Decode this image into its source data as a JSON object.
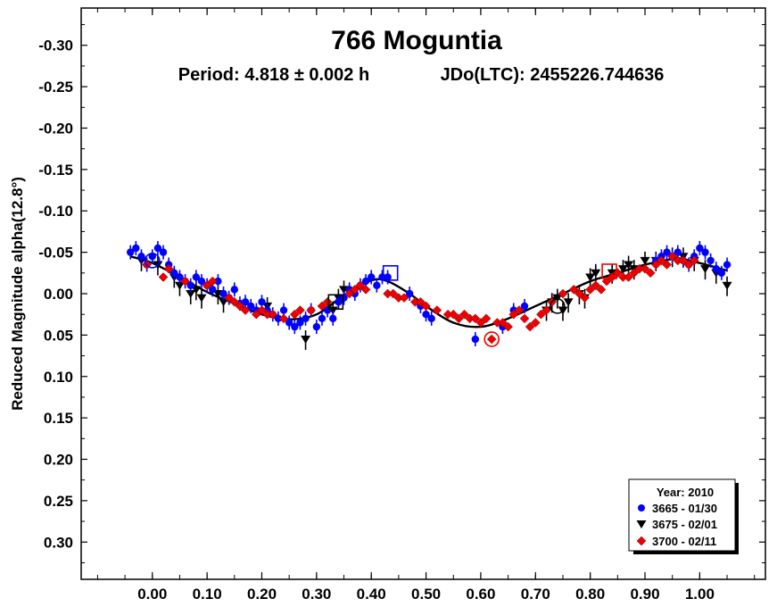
{
  "chart_data": {
    "type": "scatter",
    "title": "766 Moguntia",
    "subtitle_period": "Period: 4.818 ± 0.002 h",
    "subtitle_epoch": "JDo(LTC): 2455226.744636",
    "xlabel": "",
    "ylabel": "Reduced Magnitude alpha(12.8°)",
    "xlim": [
      -0.13,
      1.12
    ],
    "ylim": [
      -0.345,
      0.345
    ],
    "y_inverted": true,
    "x_ticks": [
      "0.00",
      "0.10",
      "0.20",
      "0.30",
      "0.40",
      "0.50",
      "0.60",
      "0.70",
      "0.80",
      "0.90",
      "1.00"
    ],
    "x_tick_values": [
      0.0,
      0.1,
      0.2,
      0.3,
      0.4,
      0.5,
      0.6,
      0.7,
      0.8,
      0.9,
      1.0
    ],
    "y_ticks": [
      "-0.30",
      "-0.25",
      "-0.20",
      "-0.15",
      "-0.10",
      "-0.05",
      "0.00",
      "0.05",
      "0.10",
      "0.15",
      "0.20",
      "0.25",
      "0.30"
    ],
    "y_tick_values": [
      -0.3,
      -0.25,
      -0.2,
      -0.15,
      -0.1,
      -0.05,
      0.0,
      0.05,
      0.1,
      0.15,
      0.2,
      0.25,
      0.3
    ],
    "grid": false,
    "legend": {
      "placement": "bottom-right",
      "title": "Year: 2010",
      "entries": [
        "3665 - 01/30",
        "3675 - 02/01",
        "3700 - 02/11"
      ]
    },
    "fit_curve": {
      "name": "",
      "color": "#000000",
      "x": [
        -0.04,
        0.0,
        0.05,
        0.1,
        0.15,
        0.2,
        0.25,
        0.3,
        0.35,
        0.4,
        0.43,
        0.47,
        0.5,
        0.55,
        0.6,
        0.65,
        0.7,
        0.75,
        0.8,
        0.85,
        0.9,
        0.95,
        0.96,
        1.0,
        1.05
      ],
      "y": [
        -0.045,
        -0.037,
        -0.02,
        -0.002,
        0.012,
        0.025,
        0.031,
        0.025,
        0.002,
        -0.016,
        -0.015,
        0.0,
        0.015,
        0.035,
        0.04,
        0.03,
        0.015,
        0.0,
        -0.015,
        -0.025,
        -0.035,
        -0.042,
        -0.043,
        -0.037,
        -0.028
      ]
    },
    "series": [
      {
        "name": "3665 - 01/30",
        "marker": "circle",
        "color": "#0000ff",
        "x": [
          -0.04,
          -0.03,
          -0.02,
          -0.01,
          0.0,
          0.01,
          0.02,
          0.03,
          0.04,
          0.05,
          0.06,
          0.07,
          0.08,
          0.09,
          0.1,
          0.11,
          0.12,
          0.13,
          0.14,
          0.15,
          0.16,
          0.17,
          0.18,
          0.19,
          0.2,
          0.21,
          0.22,
          0.23,
          0.24,
          0.25,
          0.26,
          0.27,
          0.28,
          0.29,
          0.3,
          0.31,
          0.32,
          0.33,
          0.34,
          0.35,
          0.36,
          0.37,
          0.38,
          0.39,
          0.4,
          0.41,
          0.42,
          0.43,
          0.47,
          0.49,
          0.5,
          0.51,
          0.59,
          0.64,
          0.66,
          0.68,
          0.92,
          0.93,
          0.94,
          0.95,
          0.96,
          0.97,
          0.98,
          0.99,
          1.0,
          1.01,
          1.02,
          1.03,
          1.04,
          1.05
        ],
        "y": [
          -0.05,
          -0.055,
          -0.045,
          -0.035,
          -0.045,
          -0.055,
          -0.05,
          -0.035,
          -0.025,
          -0.02,
          -0.015,
          -0.01,
          -0.02,
          -0.015,
          -0.01,
          -0.005,
          -0.015,
          0.0,
          0.005,
          -0.005,
          0.012,
          0.01,
          0.015,
          0.02,
          0.01,
          0.02,
          0.025,
          0.03,
          0.02,
          0.035,
          0.04,
          0.035,
          0.03,
          0.02,
          0.04,
          0.03,
          0.02,
          0.03,
          0.01,
          0.005,
          -0.005,
          0.0,
          -0.01,
          -0.015,
          -0.02,
          -0.01,
          -0.02,
          -0.02,
          0.0,
          0.015,
          0.025,
          0.03,
          0.055,
          0.04,
          0.02,
          0.015,
          -0.04,
          -0.045,
          -0.05,
          -0.045,
          -0.05,
          -0.04,
          -0.035,
          -0.045,
          -0.055,
          -0.05,
          -0.04,
          -0.03,
          -0.025,
          -0.035
        ]
      },
      {
        "name": "3675 - 02/01",
        "marker": "triangle-down",
        "color": "#000000",
        "x": [
          -0.02,
          0.01,
          0.04,
          0.05,
          0.07,
          0.08,
          0.09,
          0.12,
          0.13,
          0.21,
          0.28,
          0.33,
          0.34,
          0.35,
          0.72,
          0.73,
          0.74,
          0.75,
          0.76,
          0.78,
          0.79,
          0.8,
          0.81,
          0.84,
          0.86,
          0.87,
          0.88,
          0.9,
          0.92,
          0.95,
          0.97,
          0.99,
          1.01,
          1.03,
          1.05
        ],
        "y": [
          -0.04,
          -0.035,
          -0.02,
          -0.01,
          0.0,
          -0.005,
          0.005,
          0.0,
          0.01,
          0.015,
          0.055,
          0.02,
          0.005,
          -0.005,
          0.02,
          0.01,
          0.005,
          0.02,
          0.01,
          0.0,
          0.005,
          -0.02,
          -0.025,
          -0.025,
          -0.03,
          -0.035,
          -0.03,
          -0.04,
          -0.04,
          -0.045,
          -0.045,
          -0.04,
          -0.03,
          -0.025,
          -0.01
        ]
      },
      {
        "name": "3700 - 02/11",
        "marker": "diamond",
        "color": "#ee0000",
        "x": [
          -0.01,
          0.02,
          0.03,
          0.06,
          0.1,
          0.11,
          0.14,
          0.15,
          0.16,
          0.17,
          0.19,
          0.2,
          0.21,
          0.22,
          0.24,
          0.26,
          0.27,
          0.29,
          0.31,
          0.32,
          0.36,
          0.37,
          0.38,
          0.39,
          0.43,
          0.44,
          0.45,
          0.46,
          0.48,
          0.49,
          0.5,
          0.52,
          0.54,
          0.55,
          0.56,
          0.57,
          0.58,
          0.59,
          0.6,
          0.61,
          0.62,
          0.63,
          0.64,
          0.65,
          0.66,
          0.67,
          0.68,
          0.69,
          0.7,
          0.71,
          0.72,
          0.73,
          0.75,
          0.77,
          0.78,
          0.79,
          0.8,
          0.81,
          0.82,
          0.83,
          0.84,
          0.85,
          0.86,
          0.87,
          0.88,
          0.89,
          0.9,
          0.91,
          0.92,
          0.93,
          0.94,
          0.95,
          0.96,
          0.97,
          0.98,
          0.99
        ],
        "y": [
          -0.035,
          -0.02,
          -0.03,
          -0.015,
          -0.01,
          -0.015,
          0.005,
          0.01,
          0.015,
          0.02,
          0.025,
          0.02,
          0.025,
          0.025,
          0.03,
          0.025,
          0.02,
          0.02,
          0.015,
          0.01,
          0.0,
          -0.005,
          -0.01,
          -0.005,
          0.0,
          0.0,
          0.005,
          0.005,
          0.01,
          0.01,
          0.015,
          0.02,
          0.025,
          0.025,
          0.03,
          0.025,
          0.03,
          0.03,
          0.035,
          0.03,
          0.055,
          0.035,
          0.035,
          0.04,
          0.025,
          0.02,
          0.03,
          0.04,
          0.035,
          0.025,
          0.02,
          0.01,
          0.0,
          -0.005,
          0.0,
          0.005,
          -0.005,
          -0.01,
          -0.005,
          -0.015,
          -0.02,
          -0.025,
          -0.02,
          -0.02,
          -0.025,
          -0.03,
          -0.03,
          -0.025,
          -0.035,
          -0.04,
          -0.035,
          -0.045,
          -0.04,
          -0.04,
          -0.035,
          -0.04
        ]
      }
    ],
    "highlighted_points": [
      {
        "series": "3665 - 01/30",
        "marker": "circle",
        "x": 0.0,
        "y": -0.04
      },
      {
        "series": "3665 - 01/30",
        "marker": "square",
        "x": 0.435,
        "y": -0.025
      },
      {
        "series": "3675 - 02/01",
        "marker": "square",
        "x": 0.335,
        "y": 0.01
      },
      {
        "series": "3675 - 02/01",
        "marker": "circle",
        "x": 0.74,
        "y": 0.015
      },
      {
        "series": "3700 - 02/11",
        "marker": "circle",
        "x": 0.62,
        "y": 0.055
      },
      {
        "series": "3700 - 02/11",
        "marker": "square",
        "x": 0.835,
        "y": -0.027
      }
    ]
  }
}
